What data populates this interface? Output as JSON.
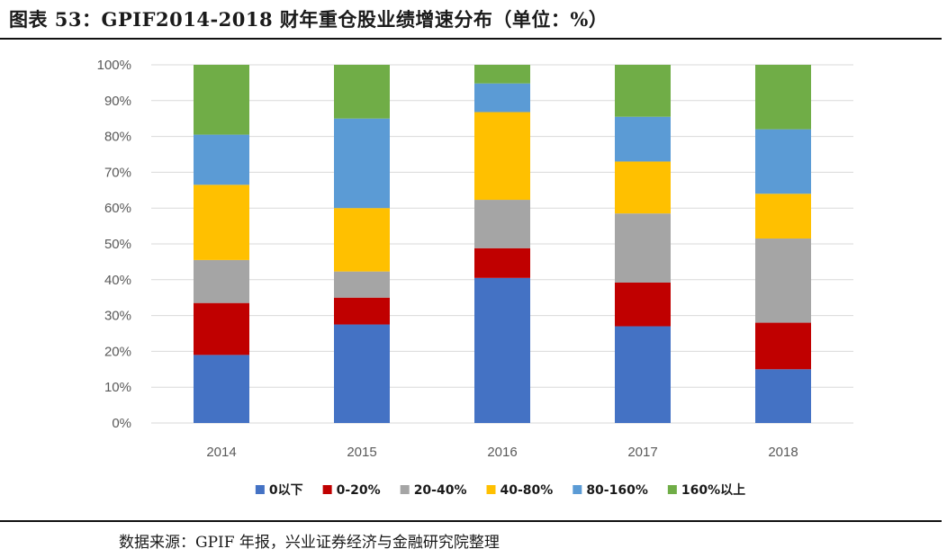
{
  "title": "图表 53：GPIF2014-2018 财年重仓股业绩增速分布（单位：%）",
  "source": "数据来源：GPIF 年报，兴业证券经济与金融研究院整理",
  "chart_data": {
    "type": "bar",
    "stacked": true,
    "categories": [
      "2014",
      "2015",
      "2016",
      "2017",
      "2018"
    ],
    "y_tick_labels": [
      "0%",
      "10%",
      "20%",
      "30%",
      "40%",
      "50%",
      "60%",
      "70%",
      "80%",
      "90%",
      "100%"
    ],
    "ylim": [
      0,
      100
    ],
    "grid": true,
    "legend_position": "bottom",
    "series": [
      {
        "name": "0以下",
        "color": "#4472C4",
        "values": [
          19,
          27.5,
          40.5,
          27,
          15
        ]
      },
      {
        "name": "0-20%",
        "color": "#C00000",
        "values": [
          14.5,
          7.5,
          8.3,
          12.2,
          13
        ]
      },
      {
        "name": "20-40%",
        "color": "#A5A5A5",
        "values": [
          12,
          7.3,
          13.5,
          19.3,
          23.5
        ]
      },
      {
        "name": "40-80%",
        "color": "#FFC000",
        "values": [
          21,
          17.7,
          24.5,
          14.5,
          12.5
        ]
      },
      {
        "name": "80-160%",
        "color": "#5B9BD5",
        "values": [
          14,
          25,
          8,
          12.5,
          18
        ]
      },
      {
        "name": "160%以上",
        "color": "#70AD47",
        "values": [
          19.5,
          15,
          5.2,
          14.5,
          18
        ]
      }
    ]
  }
}
